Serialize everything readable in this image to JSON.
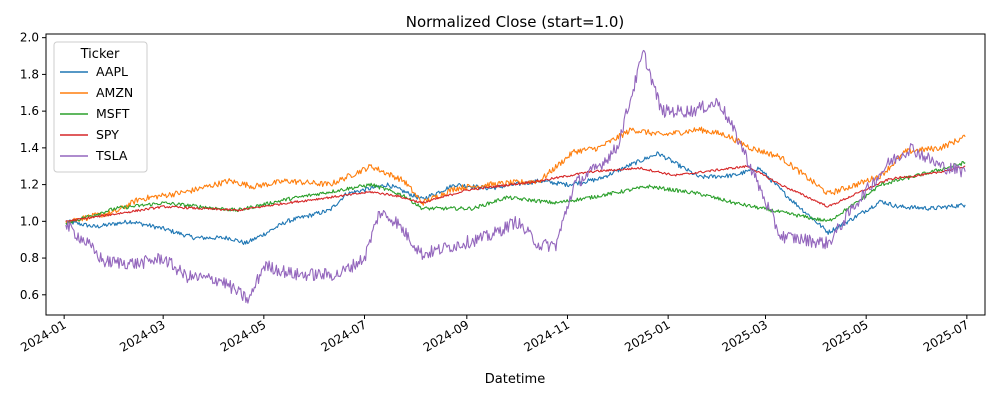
{
  "chart_data": {
    "type": "line",
    "title": "Normalized Close (start=1.0)",
    "xlabel": "Datetime",
    "ylabel": "",
    "x_range": [
      "2023-12-21",
      "2025-07-12"
    ],
    "ylim": [
      0.49,
      2.02
    ],
    "yticks": [
      0.6,
      0.8,
      1.0,
      1.2,
      1.4,
      1.6,
      1.8,
      2.0
    ],
    "ytick_labels": [
      "0.6",
      "0.8",
      "1.0",
      "1.2",
      "1.4",
      "1.6",
      "1.8",
      "2.0"
    ],
    "xticks": [
      "2024-01-01",
      "2024-03-01",
      "2024-05-01",
      "2024-07-01",
      "2024-09-01",
      "2024-11-01",
      "2025-01-01",
      "2025-03-01",
      "2025-05-01",
      "2025-07-01"
    ],
    "xtick_labels": [
      "2024-01",
      "2024-03",
      "2024-05",
      "2024-07",
      "2024-09",
      "2024-11",
      "2025-01",
      "2025-03",
      "2025-05",
      "2025-07"
    ],
    "grid": false,
    "legend": {
      "title": "Ticker",
      "placement": "upper-left"
    },
    "series": [
      {
        "name": "AAPL",
        "color": "#1f77b4",
        "points": [
          [
            "2024-01-02",
            1.0
          ],
          [
            "2024-01-20",
            0.97
          ],
          [
            "2024-02-10",
            1.0
          ],
          [
            "2024-03-01",
            0.96
          ],
          [
            "2024-03-20",
            0.91
          ],
          [
            "2024-04-10",
            0.91
          ],
          [
            "2024-04-20",
            0.88
          ],
          [
            "2024-05-01",
            0.93
          ],
          [
            "2024-05-15",
            1.0
          ],
          [
            "2024-06-10",
            1.06
          ],
          [
            "2024-06-20",
            1.15
          ],
          [
            "2024-07-15",
            1.2
          ],
          [
            "2024-08-05",
            1.12
          ],
          [
            "2024-08-25",
            1.2
          ],
          [
            "2024-09-15",
            1.18
          ],
          [
            "2024-10-15",
            1.22
          ],
          [
            "2024-11-01",
            1.2
          ],
          [
            "2024-11-20",
            1.23
          ],
          [
            "2024-12-10",
            1.31
          ],
          [
            "2024-12-26",
            1.37
          ],
          [
            "2025-01-20",
            1.24
          ],
          [
            "2025-02-10",
            1.25
          ],
          [
            "2025-02-25",
            1.29
          ],
          [
            "2025-03-15",
            1.13
          ],
          [
            "2025-04-08",
            0.94
          ],
          [
            "2025-04-20",
            1.0
          ],
          [
            "2025-05-10",
            1.11
          ],
          [
            "2025-05-20",
            1.08
          ],
          [
            "2025-06-10",
            1.07
          ],
          [
            "2025-06-30",
            1.09
          ]
        ]
      },
      {
        "name": "AMZN",
        "color": "#ff7f0e",
        "points": [
          [
            "2024-01-02",
            1.0
          ],
          [
            "2024-02-01",
            1.05
          ],
          [
            "2024-02-15",
            1.12
          ],
          [
            "2024-03-15",
            1.16
          ],
          [
            "2024-04-10",
            1.22
          ],
          [
            "2024-04-25",
            1.19
          ],
          [
            "2024-05-15",
            1.22
          ],
          [
            "2024-06-10",
            1.2
          ],
          [
            "2024-07-05",
            1.3
          ],
          [
            "2024-07-25",
            1.22
          ],
          [
            "2024-08-05",
            1.1
          ],
          [
            "2024-08-25",
            1.18
          ],
          [
            "2024-09-15",
            1.2
          ],
          [
            "2024-10-15",
            1.22
          ],
          [
            "2024-11-05",
            1.38
          ],
          [
            "2024-11-20",
            1.4
          ],
          [
            "2024-12-10",
            1.5
          ],
          [
            "2024-12-28",
            1.47
          ],
          [
            "2025-01-20",
            1.5
          ],
          [
            "2025-02-05",
            1.47
          ],
          [
            "2025-02-20",
            1.4
          ],
          [
            "2025-03-10",
            1.35
          ],
          [
            "2025-04-08",
            1.15
          ],
          [
            "2025-04-25",
            1.2
          ],
          [
            "2025-05-10",
            1.25
          ],
          [
            "2025-05-25",
            1.38
          ],
          [
            "2025-06-15",
            1.4
          ],
          [
            "2025-06-30",
            1.46
          ]
        ]
      },
      {
        "name": "MSFT",
        "color": "#2ca02c",
        "points": [
          [
            "2024-01-02",
            0.99
          ],
          [
            "2024-02-01",
            1.07
          ],
          [
            "2024-03-01",
            1.1
          ],
          [
            "2024-04-15",
            1.06
          ],
          [
            "2024-05-15",
            1.12
          ],
          [
            "2024-07-05",
            1.2
          ],
          [
            "2024-07-25",
            1.14
          ],
          [
            "2024-08-05",
            1.07
          ],
          [
            "2024-09-05",
            1.07
          ],
          [
            "2024-09-25",
            1.13
          ],
          [
            "2024-10-25",
            1.1
          ],
          [
            "2024-11-15",
            1.13
          ],
          [
            "2024-12-20",
            1.19
          ],
          [
            "2025-01-20",
            1.15
          ],
          [
            "2025-02-10",
            1.1
          ],
          [
            "2025-03-10",
            1.05
          ],
          [
            "2025-04-08",
            1.0
          ],
          [
            "2025-04-25",
            1.1
          ],
          [
            "2025-05-10",
            1.2
          ],
          [
            "2025-06-10",
            1.27
          ],
          [
            "2025-06-30",
            1.32
          ]
        ]
      },
      {
        "name": "SPY",
        "color": "#d62728",
        "points": [
          [
            "2024-01-02",
            1.0
          ],
          [
            "2024-02-01",
            1.04
          ],
          [
            "2024-03-01",
            1.08
          ],
          [
            "2024-04-15",
            1.06
          ],
          [
            "2024-05-15",
            1.1
          ],
          [
            "2024-07-05",
            1.16
          ],
          [
            "2024-07-20",
            1.14
          ],
          [
            "2024-08-05",
            1.1
          ],
          [
            "2024-09-01",
            1.17
          ],
          [
            "2024-10-15",
            1.22
          ],
          [
            "2024-11-15",
            1.27
          ],
          [
            "2024-12-15",
            1.29
          ],
          [
            "2025-01-05",
            1.25
          ],
          [
            "2025-02-18",
            1.3
          ],
          [
            "2025-03-10",
            1.2
          ],
          [
            "2025-04-08",
            1.08
          ],
          [
            "2025-04-25",
            1.15
          ],
          [
            "2025-05-15",
            1.23
          ],
          [
            "2025-06-10",
            1.26
          ],
          [
            "2025-06-30",
            1.3
          ]
        ]
      },
      {
        "name": "TSLA",
        "color": "#9467bd",
        "points": [
          [
            "2024-01-02",
            0.98
          ],
          [
            "2024-01-15",
            0.88
          ],
          [
            "2024-01-25",
            0.78
          ],
          [
            "2024-02-15",
            0.77
          ],
          [
            "2024-03-01",
            0.8
          ],
          [
            "2024-03-15",
            0.7
          ],
          [
            "2024-04-05",
            0.68
          ],
          [
            "2024-04-22",
            0.57
          ],
          [
            "2024-05-01",
            0.76
          ],
          [
            "2024-05-20",
            0.71
          ],
          [
            "2024-06-15",
            0.71
          ],
          [
            "2024-07-01",
            0.8
          ],
          [
            "2024-07-10",
            1.05
          ],
          [
            "2024-07-20",
            1.0
          ],
          [
            "2024-08-05",
            0.82
          ],
          [
            "2024-08-25",
            0.87
          ],
          [
            "2024-09-15",
            0.92
          ],
          [
            "2024-10-01",
            1.0
          ],
          [
            "2024-10-15",
            0.87
          ],
          [
            "2024-10-25",
            0.87
          ],
          [
            "2024-11-05",
            1.2
          ],
          [
            "2024-11-20",
            1.3
          ],
          [
            "2024-12-01",
            1.4
          ],
          [
            "2024-12-17",
            1.92
          ],
          [
            "2024-12-28",
            1.6
          ],
          [
            "2025-01-15",
            1.6
          ],
          [
            "2025-02-01",
            1.65
          ],
          [
            "2025-02-15",
            1.4
          ],
          [
            "2025-03-10",
            0.92
          ],
          [
            "2025-04-08",
            0.88
          ],
          [
            "2025-04-25",
            1.1
          ],
          [
            "2025-05-15",
            1.32
          ],
          [
            "2025-05-28",
            1.4
          ],
          [
            "2025-06-15",
            1.3
          ],
          [
            "2025-06-30",
            1.27
          ]
        ]
      }
    ]
  }
}
